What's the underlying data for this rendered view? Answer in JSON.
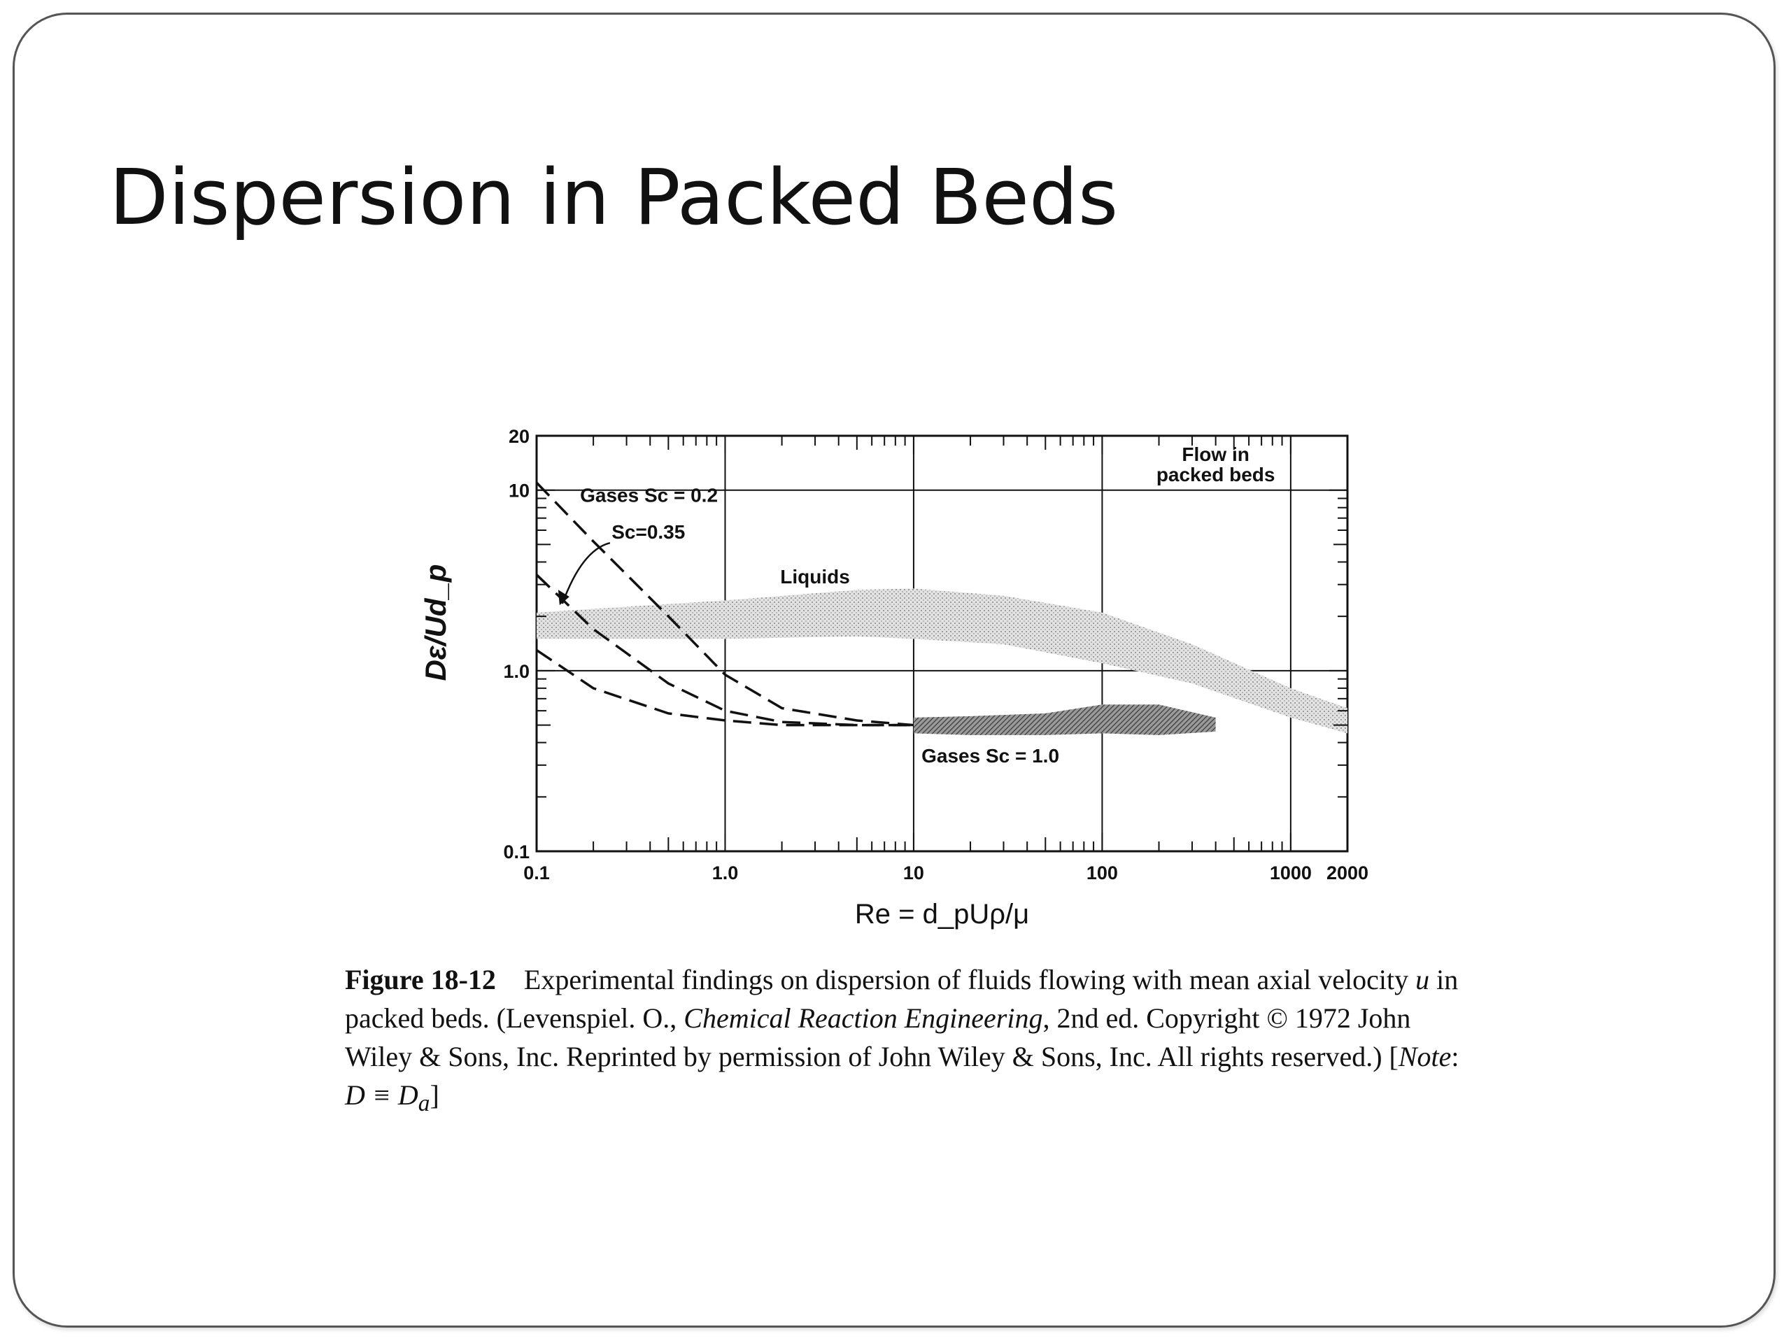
{
  "slide": {
    "title": "Dispersion in Packed Beds"
  },
  "chart_data": {
    "type": "line",
    "title": "",
    "xlabel": "Re = d_pUρ/μ",
    "ylabel": "Dε/Ud_p",
    "xscale": "log",
    "yscale": "log",
    "xlim": [
      0.1,
      2000
    ],
    "ylim": [
      0.1,
      20
    ],
    "x_ticks": [
      "0.1",
      "1.0",
      "10",
      "100",
      "1000",
      "2000"
    ],
    "y_ticks": [
      "0.1",
      "1.0",
      "10",
      "20"
    ],
    "grid": true,
    "annotations": [
      "Flow in",
      "packed beds"
    ],
    "series": [
      {
        "name": "Gases Sc = 0.2",
        "style": "dashed",
        "x": [
          0.1,
          0.2,
          0.5,
          1.0,
          2.0,
          5.0,
          10
        ],
        "y": [
          11,
          5.2,
          2.0,
          0.95,
          0.62,
          0.53,
          0.5
        ]
      },
      {
        "name": "Sc=0.35",
        "style": "dashed",
        "x": [
          0.1,
          0.2,
          0.5,
          1.0,
          2.0,
          5.0,
          10
        ],
        "y": [
          3.4,
          1.7,
          0.85,
          0.6,
          0.52,
          0.5,
          0.5
        ]
      },
      {
        "name": "",
        "style": "dashed",
        "x": [
          0.1,
          0.2,
          0.5,
          1.0,
          2.0,
          5.0,
          10
        ],
        "y": [
          1.3,
          0.8,
          0.58,
          0.53,
          0.5,
          0.5,
          0.5
        ]
      },
      {
        "name": "Liquids",
        "style": "band",
        "x": [
          0.1,
          1.0,
          5.0,
          10,
          30,
          100,
          300,
          1000,
          2000
        ],
        "y_lower": [
          1.5,
          1.5,
          1.55,
          1.5,
          1.4,
          1.1,
          0.85,
          0.55,
          0.45
        ],
        "y_upper": [
          2.1,
          2.45,
          2.8,
          2.85,
          2.6,
          2.1,
          1.4,
          0.8,
          0.62
        ]
      },
      {
        "name": "Gases Sc = 1.0",
        "style": "band",
        "x": [
          10,
          20,
          50,
          100,
          200,
          400
        ],
        "y_lower": [
          0.45,
          0.44,
          0.44,
          0.45,
          0.44,
          0.46
        ],
        "y_upper": [
          0.55,
          0.56,
          0.58,
          0.65,
          0.65,
          0.55
        ]
      }
    ]
  },
  "caption": {
    "figure_label": "Figure 18-12",
    "text_1": "Experimental findings on dispersion of fluids flowing with mean axial velocity ",
    "symbol_u": "u",
    "text_2": " in packed beds. (Levenspiel. O., ",
    "book_title": "Chemical Reaction Engineering",
    "text_3": ", 2nd ed. Copyright © 1972 John Wiley & Sons, Inc. Reprinted by permission of John Wiley & Sons, Inc. All rights reserved.) [",
    "note_label": "Note",
    "text_4": ": ",
    "note_eq": "D ≡ D",
    "note_sub": "a",
    "text_5": "]"
  },
  "colors": {
    "ink": "#111111",
    "band_liquids": "#cfcfcf",
    "band_gases": "#7a7a7a",
    "frame": "#555555"
  }
}
